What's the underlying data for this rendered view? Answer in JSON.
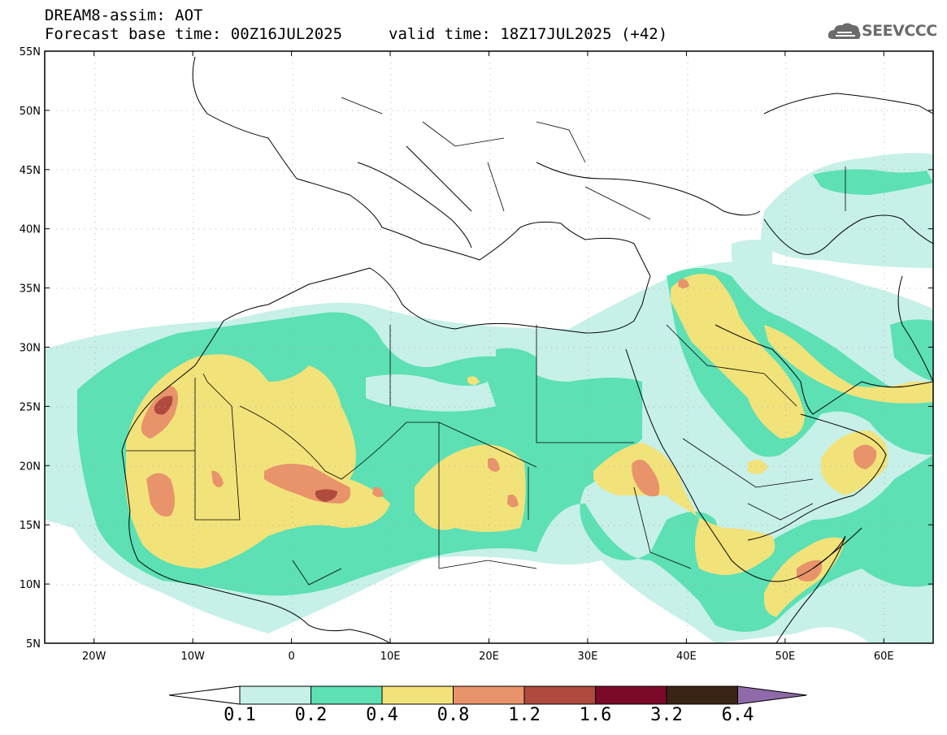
{
  "header": {
    "title_line1": "DREAM8-assim: AOT",
    "title_line2": "Forecast base time: 00Z16JUL2025",
    "valid_time": "valid time: 18Z17JUL2025 (+42)",
    "logo_text": "SEEVCCC",
    "logo_icon": "cloud-logo-icon"
  },
  "map": {
    "lon_range": [
      -25,
      65
    ],
    "lat_range": [
      5,
      55
    ],
    "lon_ticks": [
      {
        "value": -20,
        "label": "20W"
      },
      {
        "value": -10,
        "label": "10W"
      },
      {
        "value": 0,
        "label": "0"
      },
      {
        "value": 10,
        "label": "10E"
      },
      {
        "value": 20,
        "label": "20E"
      },
      {
        "value": 30,
        "label": "30E"
      },
      {
        "value": 40,
        "label": "40E"
      },
      {
        "value": 50,
        "label": "50E"
      },
      {
        "value": 60,
        "label": "60E"
      }
    ],
    "lat_ticks": [
      {
        "value": 55,
        "label": "55N"
      },
      {
        "value": 50,
        "label": "50N"
      },
      {
        "value": 45,
        "label": "45N"
      },
      {
        "value": 40,
        "label": "40N"
      },
      {
        "value": 35,
        "label": "35N"
      },
      {
        "value": 30,
        "label": "30N"
      },
      {
        "value": 25,
        "label": "25N"
      },
      {
        "value": 20,
        "label": "20N"
      },
      {
        "value": 15,
        "label": "15N"
      },
      {
        "value": 10,
        "label": "10N"
      },
      {
        "value": 5,
        "label": "5N"
      }
    ],
    "grid": "dotted"
  },
  "colorbar": {
    "levels": [
      "0.1",
      "0.2",
      "0.4",
      "0.8",
      "1.2",
      "1.6",
      "3.2",
      "6.4"
    ],
    "colors": [
      "#c6f0e8",
      "#5ce0b4",
      "#f2e27a",
      "#e8936a",
      "#b04a3e",
      "#7a0a28",
      "#3a2416",
      "#8e6aa8"
    ],
    "under_color": "#ffffff",
    "over_color": "#8e6aa8"
  }
}
